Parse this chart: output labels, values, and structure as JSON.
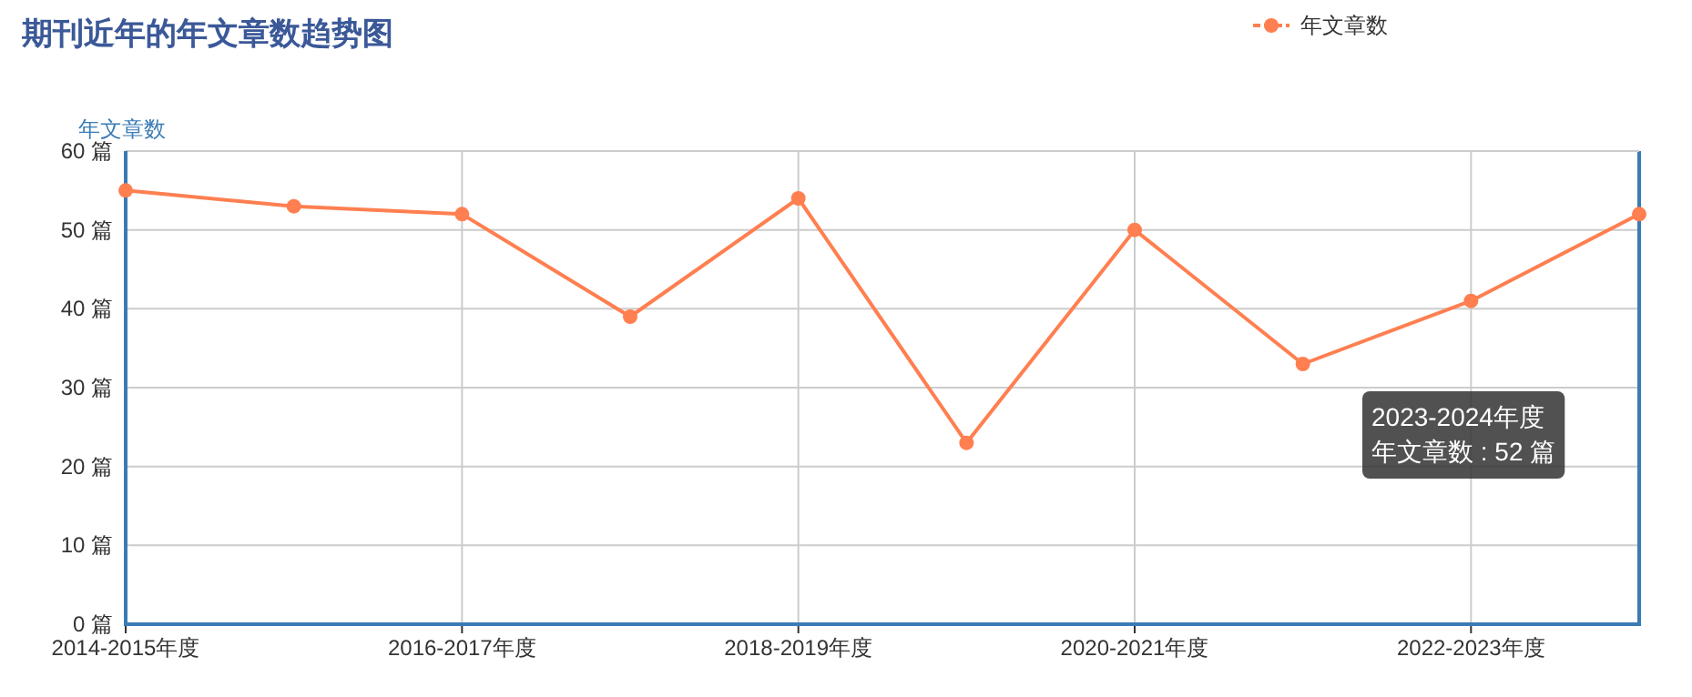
{
  "chart_data": {
    "type": "line",
    "title": "期刊近年的年文章数趋势图",
    "ylabel": "年文章数",
    "categories": [
      "2014-2015年度",
      null,
      "2016-2017年度",
      null,
      "2018-2019年度",
      null,
      "2020-2021年度",
      null,
      "2022-2023年度",
      null
    ],
    "series": [
      {
        "name": "年文章数",
        "color": "#ff7f50",
        "values": [
          55,
          53,
          52,
          39,
          54,
          23,
          50,
          33,
          41,
          52
        ]
      }
    ],
    "ylim": [
      0,
      60
    ],
    "yticks": [
      {
        "value": 0,
        "label": "0 篇"
      },
      {
        "value": 10,
        "label": "10 篇"
      },
      {
        "value": 20,
        "label": "20 篇"
      },
      {
        "value": 30,
        "label": "30 篇"
      },
      {
        "value": 40,
        "label": "40 篇"
      },
      {
        "value": 50,
        "label": "50 篇"
      },
      {
        "value": 60,
        "label": "60 篇"
      }
    ],
    "annotations": [
      "2023-2024年度",
      "年文章数 : 52 篇"
    ],
    "grid": true,
    "legend": "top right",
    "marker": "circle",
    "line_style": "solid"
  }
}
